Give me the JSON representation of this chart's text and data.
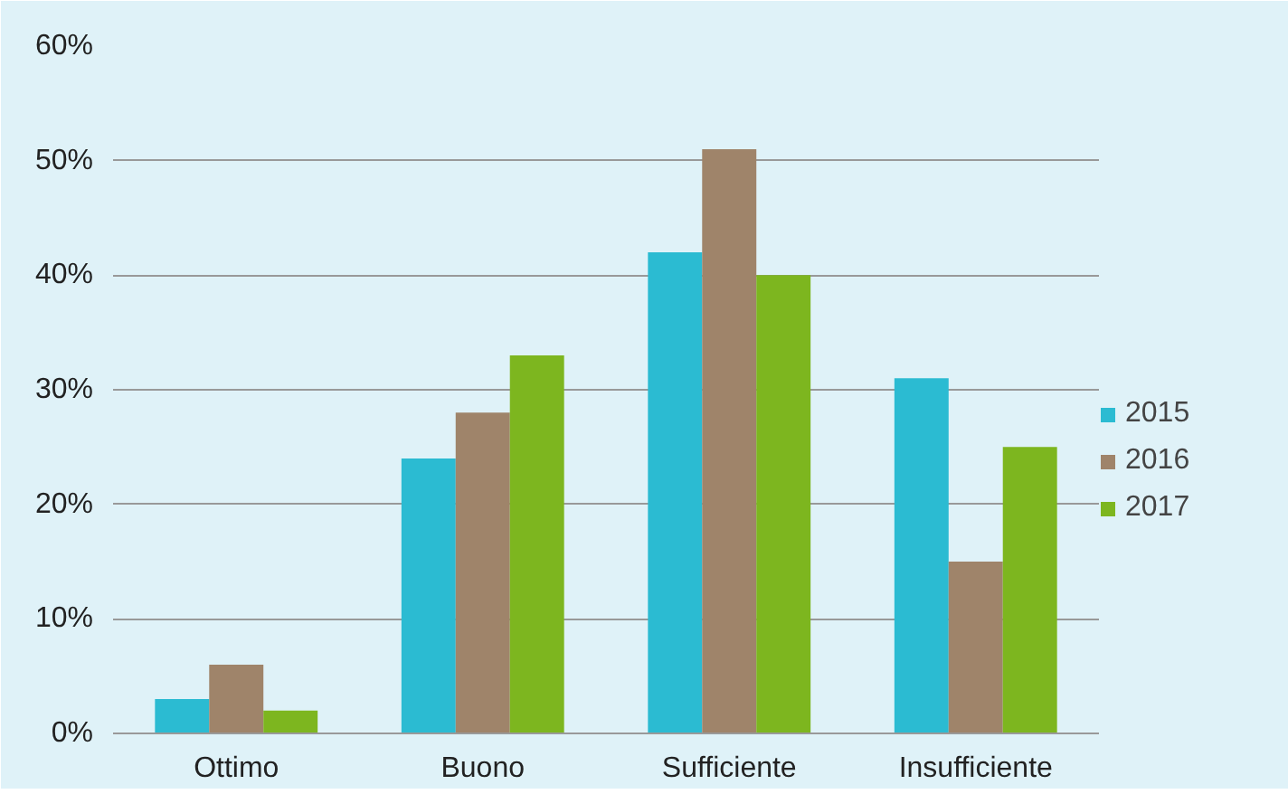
{
  "chart_data": {
    "type": "bar",
    "categories": [
      "Ottimo",
      "Buono",
      "Sufficiente",
      "Insufficiente"
    ],
    "series": [
      {
        "name": "2015",
        "color": "#2bbbd2",
        "values": [
          3,
          24,
          42,
          31
        ]
      },
      {
        "name": "2016",
        "color": "#9f846a",
        "values": [
          6,
          28,
          51,
          15
        ]
      },
      {
        "name": "2017",
        "color": "#7db61f",
        "values": [
          2,
          33,
          40,
          25
        ]
      }
    ],
    "ylim": [
      0,
      60
    ],
    "yticks": [
      {
        "value": 0,
        "label": "0%"
      },
      {
        "value": 10,
        "label": "10%"
      },
      {
        "value": 20,
        "label": "20%"
      },
      {
        "value": 30,
        "label": "30%"
      },
      {
        "value": 40,
        "label": "40%"
      },
      {
        "value": 50,
        "label": "50%"
      },
      {
        "value": 60,
        "label": "60%"
      }
    ],
    "grid": "y",
    "legend": "right"
  }
}
